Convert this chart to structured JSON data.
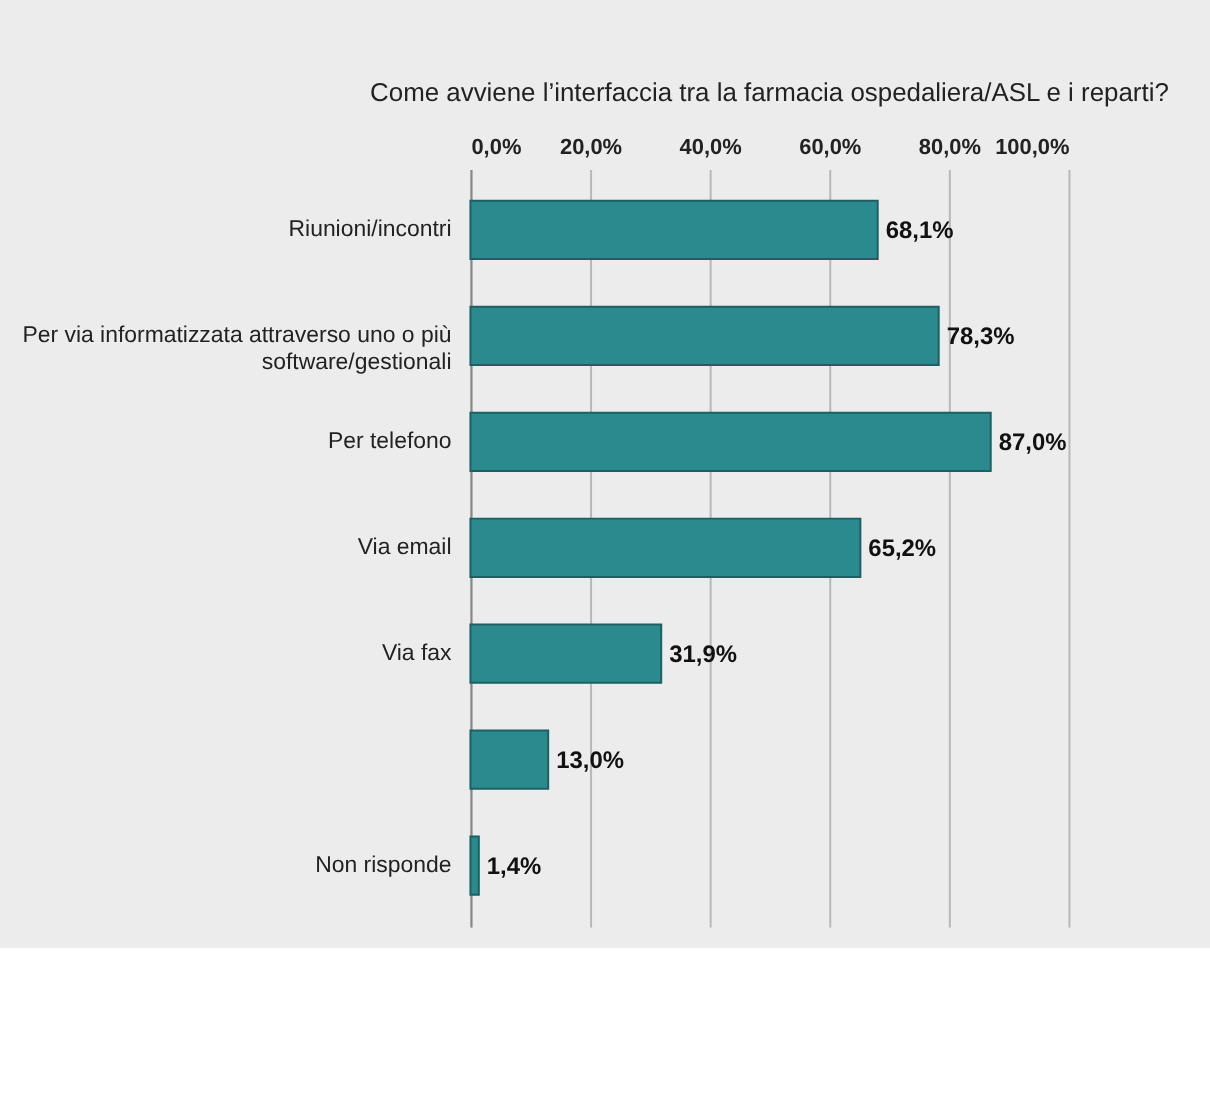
{
  "chart_data": {
    "type": "bar",
    "orientation": "horizontal",
    "title": "Come avviene l’interfaccia tra la farmacia ospedaliera/ASL e i reparti?",
    "categories": [
      "Riunioni/incontri",
      "Per via informatizzata attraverso uno o più software/gestionali",
      "Per telefono",
      "Via email",
      "Via fax",
      null,
      "Non risponde"
    ],
    "values": [
      68.1,
      78.3,
      87.0,
      65.2,
      31.9,
      13.0,
      1.4
    ],
    "value_labels": [
      "68,1%",
      "78,3%",
      "87,0%",
      "65,2%",
      "31,9%",
      "13,0%",
      "1,4%"
    ],
    "color": "#2b8a8e",
    "xlim": [
      0,
      100
    ],
    "xticks": [
      {
        "value": 0,
        "label": "0,0%"
      },
      {
        "value": 20,
        "label": "20,0%"
      },
      {
        "value": 40,
        "label": "40,0%"
      },
      {
        "value": 60,
        "label": "60,0%"
      },
      {
        "value": 80,
        "label": "80,0%"
      },
      {
        "value": 100,
        "label": "100,0%"
      }
    ],
    "grid": "x"
  }
}
